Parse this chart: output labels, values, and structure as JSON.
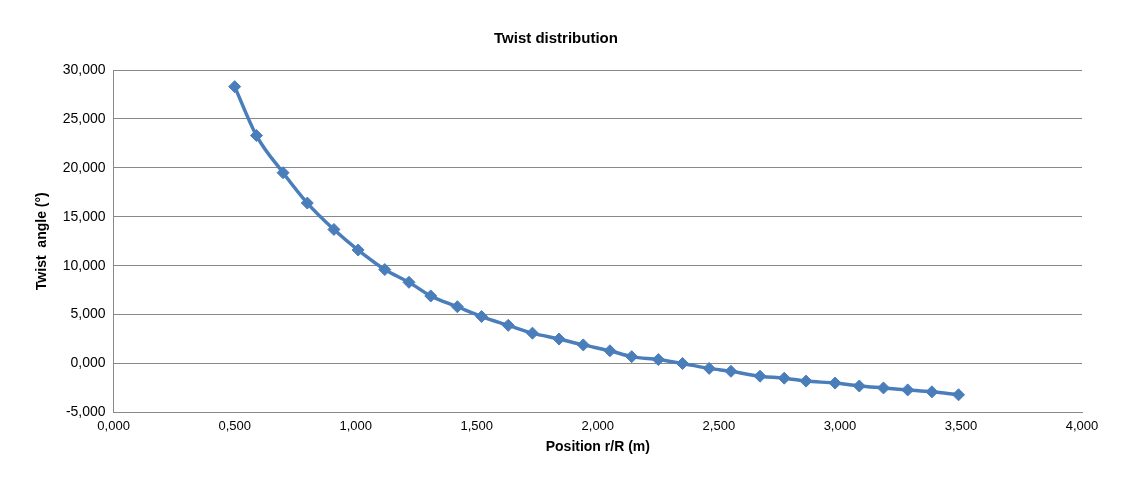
{
  "chart_data": {
    "type": "line",
    "title": "Twist distribution",
    "xlabel": "Position r/R (m)",
    "ylabel": "Twist  angle (°)",
    "x": [
      0.5,
      0.59,
      0.7,
      0.8,
      0.91,
      1.01,
      1.12,
      1.22,
      1.31,
      1.42,
      1.52,
      1.63,
      1.73,
      1.84,
      1.94,
      2.05,
      2.14,
      2.25,
      2.35,
      2.46,
      2.55,
      2.67,
      2.77,
      2.86,
      2.98,
      3.08,
      3.18,
      3.28,
      3.38,
      3.49
    ],
    "series": [
      {
        "color": "#4a7ebb",
        "values": [
          28.3,
          23.3,
          19.5,
          16.4,
          13.7,
          11.6,
          9.6,
          8.3,
          6.9,
          5.8,
          4.8,
          3.9,
          3.1,
          2.5,
          1.9,
          1.3,
          0.7,
          0.4,
          0.0,
          -0.5,
          -0.8,
          -1.3,
          -1.5,
          -1.8,
          -2.0,
          -2.3,
          -2.5,
          -2.7,
          -2.9,
          -3.2
        ]
      }
    ],
    "xlim": [
      0,
      4
    ],
    "xticks": [
      {
        "value": 0,
        "label": "0,000"
      },
      {
        "value": 0.5,
        "label": "0,500"
      },
      {
        "value": 1,
        "label": "1,000"
      },
      {
        "value": 1.5,
        "label": "1,500"
      },
      {
        "value": 2,
        "label": "2,000"
      },
      {
        "value": 2.5,
        "label": "2,500"
      },
      {
        "value": 3,
        "label": "3,000"
      },
      {
        "value": 3.5,
        "label": "3,500"
      },
      {
        "value": 4,
        "label": "4,000"
      }
    ],
    "ylim": [
      -5,
      30
    ],
    "yticks": [
      {
        "value": -5,
        "label": "-5,000"
      },
      {
        "value": 0,
        "label": "0,000"
      },
      {
        "value": 5,
        "label": "5,000"
      },
      {
        "value": 10,
        "label": "10,000"
      },
      {
        "value": 15,
        "label": "15,000"
      },
      {
        "value": 20,
        "label": "20,000"
      },
      {
        "value": 25,
        "label": "25,000"
      },
      {
        "value": 30,
        "label": "30,000"
      }
    ],
    "grid": "y",
    "marker": "diamond",
    "line_style": "solid",
    "legend": false
  }
}
